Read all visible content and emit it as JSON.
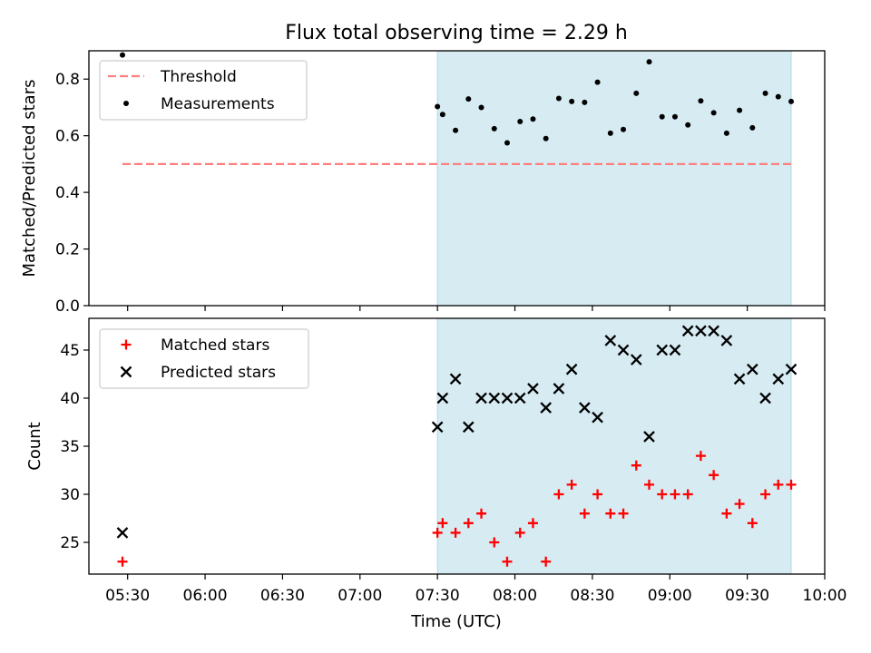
{
  "chart_data": [
    {
      "type": "scatter",
      "title": "Flux total observing time = 2.29 h",
      "xlabel": "",
      "ylabel": "Matched/Predicted stars",
      "ylim": [
        0,
        0.9
      ],
      "yticks": [
        "0.0",
        "0.2",
        "0.4",
        "0.6",
        "0.8"
      ],
      "xlim": [
        "05:15",
        "10:00"
      ],
      "xticks": [
        "05:30",
        "06:00",
        "06:30",
        "07:00",
        "07:30",
        "08:00",
        "08:30",
        "09:00",
        "09:30",
        "10:00"
      ],
      "shaded_interval": [
        "07:30",
        "09:47"
      ],
      "shaded_color": "#add8e6",
      "legend_position": "upper left",
      "series": [
        {
          "name": "Threshold",
          "kind": "dashed-line",
          "color": "#ff7f7f",
          "x": [
            "05:28",
            "09:47"
          ],
          "y": [
            0.5,
            0.5
          ]
        },
        {
          "name": "Measurements",
          "kind": "dot",
          "color": "#000000",
          "x": [
            "05:28",
            "07:30",
            "07:32",
            "07:37",
            "07:42",
            "07:47",
            "07:52",
            "07:57",
            "08:02",
            "08:07",
            "08:12",
            "08:17",
            "08:22",
            "08:27",
            "08:32",
            "08:37",
            "08:42",
            "08:47",
            "08:52",
            "08:57",
            "09:02",
            "09:07",
            "09:12",
            "09:17",
            "09:22",
            "09:27",
            "09:32",
            "09:37",
            "09:42",
            "09:47"
          ],
          "y": [
            0.885,
            0.703,
            0.675,
            0.619,
            0.73,
            0.7,
            0.625,
            0.575,
            0.65,
            0.659,
            0.59,
            0.732,
            0.721,
            0.718,
            0.789,
            0.609,
            0.622,
            0.75,
            0.861,
            0.667,
            0.667,
            0.638,
            0.723,
            0.681,
            0.609,
            0.69,
            0.628,
            0.75,
            0.738,
            0.721
          ]
        }
      ]
    },
    {
      "type": "scatter",
      "title": "",
      "xlabel": "Time (UTC)",
      "ylabel": "Count",
      "ylim": [
        21.7,
        48.3
      ],
      "yticks": [
        "25",
        "30",
        "35",
        "40",
        "45"
      ],
      "xlim": [
        "05:15",
        "10:00"
      ],
      "xticks": [
        "05:30",
        "06:00",
        "06:30",
        "07:00",
        "07:30",
        "08:00",
        "08:30",
        "09:00",
        "09:30",
        "10:00"
      ],
      "shaded_interval": [
        "07:30",
        "09:47"
      ],
      "shaded_color": "#add8e6",
      "legend_position": "upper left",
      "series": [
        {
          "name": "Matched stars",
          "kind": "plus",
          "color": "#ff0000",
          "x": [
            "05:28",
            "07:30",
            "07:32",
            "07:37",
            "07:42",
            "07:47",
            "07:52",
            "07:57",
            "08:02",
            "08:07",
            "08:12",
            "08:17",
            "08:22",
            "08:27",
            "08:32",
            "08:37",
            "08:42",
            "08:47",
            "08:52",
            "08:57",
            "09:02",
            "09:07",
            "09:12",
            "09:17",
            "09:22",
            "09:27",
            "09:32",
            "09:37",
            "09:42",
            "09:47"
          ],
          "y": [
            23,
            26,
            27,
            26,
            27,
            28,
            25,
            23,
            26,
            27,
            23,
            30,
            31,
            28,
            30,
            28,
            28,
            33,
            31,
            30,
            30,
            30,
            34,
            32,
            28,
            29,
            27,
            30,
            31,
            31
          ]
        },
        {
          "name": "Predicted stars",
          "kind": "x",
          "color": "#000000",
          "x": [
            "05:28",
            "07:30",
            "07:32",
            "07:37",
            "07:42",
            "07:47",
            "07:52",
            "07:57",
            "08:02",
            "08:07",
            "08:12",
            "08:17",
            "08:22",
            "08:27",
            "08:32",
            "08:37",
            "08:42",
            "08:47",
            "08:52",
            "08:57",
            "09:02",
            "09:07",
            "09:12",
            "09:17",
            "09:22",
            "09:27",
            "09:32",
            "09:37",
            "09:42",
            "09:47"
          ],
          "y": [
            26,
            37,
            40,
            42,
            37,
            40,
            40,
            40,
            40,
            41,
            39,
            41,
            43,
            39,
            38,
            46,
            45,
            44,
            36,
            45,
            45,
            47,
            47,
            47,
            46,
            42,
            43,
            40,
            42,
            43
          ]
        }
      ]
    }
  ]
}
